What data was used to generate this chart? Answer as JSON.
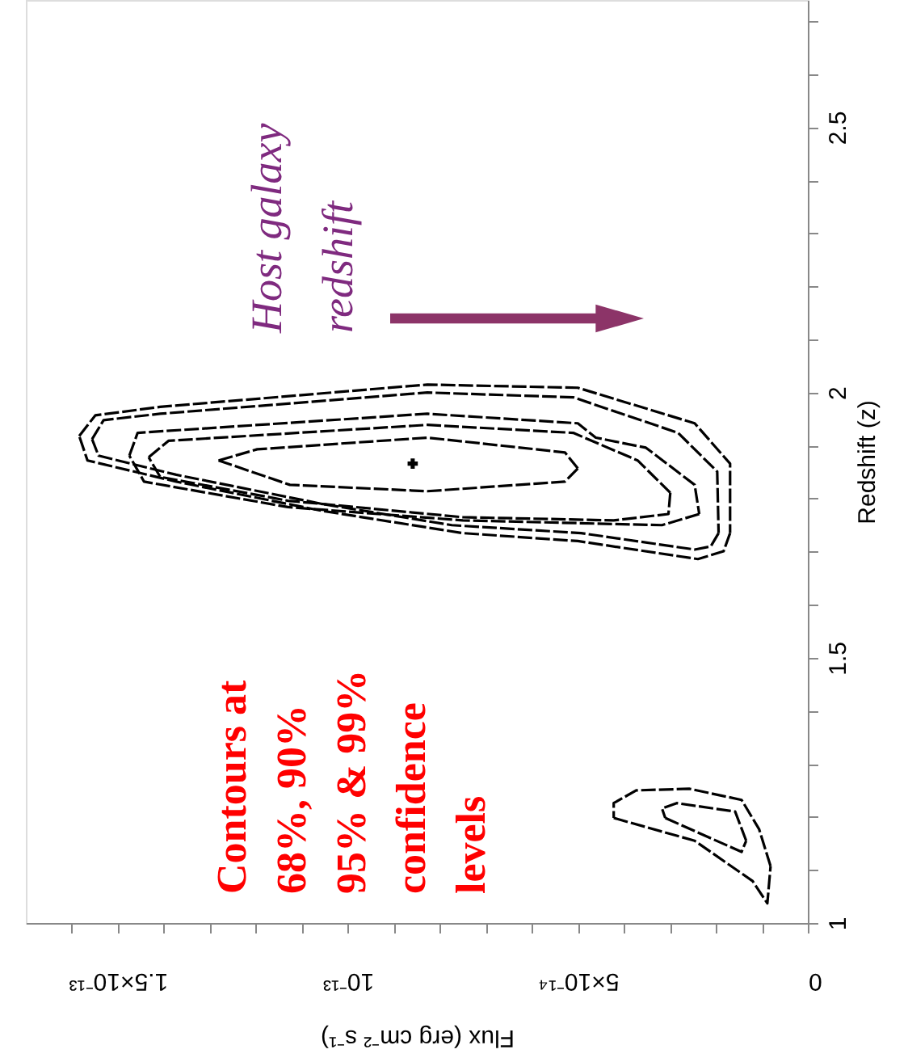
{
  "chart_data": {
    "type": "line",
    "xlabel": "Flux (erg cm⁻² s⁻¹)",
    "ylabel": "Redshift (z)",
    "xlim": [
      1.7e-13,
      0
    ],
    "ylim": [
      1,
      2.74
    ],
    "xticks": [
      0,
      {
        "value": 1e-14,
        "label": null
      },
      {
        "value": 2e-14,
        "label": null
      },
      {
        "value": 3e-14,
        "label": null
      },
      {
        "value": 4e-14,
        "label": null
      },
      {
        "value": 5e-14,
        "label": "5×10⁻¹⁴"
      },
      {
        "value": 6e-14,
        "label": null
      },
      {
        "value": 7e-14,
        "label": null
      },
      {
        "value": 8e-14,
        "label": null
      },
      {
        "value": 9e-14,
        "label": null
      },
      {
        "value": 1e-13,
        "label": "10⁻¹³"
      },
      {
        "value": 1.1e-13,
        "label": null
      },
      {
        "value": 1.2e-13,
        "label": null
      },
      {
        "value": 1.3e-13,
        "label": null
      },
      {
        "value": 1.4e-13,
        "label": null
      },
      {
        "value": 1.5e-13,
        "label": "1.5×10⁻¹³"
      },
      {
        "value": 1.6e-13,
        "label": null
      }
    ],
    "yticks": [
      1,
      {
        "value": 1.1,
        "label": null
      },
      {
        "value": 1.2,
        "label": null
      },
      {
        "value": 1.3,
        "label": null
      },
      {
        "value": 1.4,
        "label": null
      },
      1.5,
      {
        "value": 1.6,
        "label": null
      },
      {
        "value": 1.7,
        "label": null
      },
      {
        "value": 1.8,
        "label": null
      },
      {
        "value": 1.9,
        "label": null
      },
      2,
      {
        "value": 2.1,
        "label": null
      },
      {
        "value": 2.2,
        "label": null
      },
      {
        "value": 2.3,
        "label": null
      },
      {
        "value": 2.4,
        "label": null
      },
      2.5,
      {
        "value": 2.6,
        "label": null
      },
      {
        "value": 2.7,
        "label": null
      }
    ],
    "grid": false,
    "line_style": "dashed",
    "series": [
      {
        "color": "#000000",
        "x": [
          1.584e-13,
          1.549e-13,
          1.408e-13,
          8.27e-14,
          5e-14,
          2.46e-14,
          1.69e-14,
          1.69e-14,
          null,
          1.69e-14,
          1.83e-14,
          2.39e-14,
          5e-14,
          7.5e-14,
          1.056e-13,
          1.373e-13,
          1.566e-13,
          1.584e-13
        ],
        "values": [
          1.918,
          1.957,
          1.973,
          2.015,
          2.009,
          1.942,
          1.866,
          1.735,
          null,
          1.735,
          1.701,
          1.686,
          1.72,
          1.735,
          1.777,
          1.832,
          1.872,
          1.918
        ]
      },
      {
        "color": "#000000",
        "x": [
          1.556e-13,
          1.531e-13,
          1.408e-13,
          8.27e-14,
          5.1e-14,
          2.82e-14,
          1.97e-14,
          1.94e-14,
          null,
          1.94e-14,
          2.11e-14,
          2.46e-14,
          4.93e-14,
          7.74e-14,
          1.056e-13,
          1.373e-13,
          1.542e-13,
          1.556e-13
        ],
        "values": [
          1.912,
          1.948,
          1.96,
          2.0,
          1.991,
          1.924,
          1.851,
          1.735,
          null,
          1.735,
          1.71,
          1.704,
          1.735,
          1.75,
          1.79,
          1.845,
          1.881,
          1.912
        ]
      },
      {
        "color": "#000000",
        "x": [
          1.475e-13,
          1.457e-13,
          8.27e-14,
          5e-14,
          4.61e-14,
          3.52e-14,
          2.46e-14,
          2.36e-14,
          null,
          2.36e-14,
          3.17e-14,
          7.5e-14,
          1.13e-13,
          1.443e-13,
          1.475e-13
        ],
        "values": [
          1.881,
          1.924,
          1.96,
          1.942,
          1.915,
          1.896,
          1.826,
          1.771,
          null,
          1.771,
          1.75,
          1.759,
          1.784,
          1.832,
          1.881
        ]
      },
      {
        "color": "#000000",
        "x": [
          1.433e-13,
          1.39e-13,
          8.27e-14,
          5.1e-14,
          3.7e-14,
          2.99e-14,
          null,
          2.99e-14,
          3.03e-14,
          4.22e-14,
          7.5e-14,
          1.13e-13,
          1.408e-13,
          1.433e-13
        ],
        "values": [
          1.878,
          1.909,
          1.939,
          1.924,
          1.872,
          1.811,
          null,
          1.811,
          1.771,
          1.759,
          1.765,
          1.796,
          1.841,
          1.878
        ]
      },
      {
        "color": "#000000",
        "x": [
          1.281e-13,
          1.197e-13,
          8.27e-14,
          5.28e-14,
          5e-14,
          null,
          5e-14,
          5.28e-14,
          8.27e-14,
          1.126e-13,
          1.281e-13
        ],
        "values": [
          1.872,
          1.893,
          1.915,
          1.887,
          1.857,
          null,
          1.857,
          1.832,
          1.814,
          1.826,
          1.872
        ]
      },
      {
        "color": "#000000",
        "x": [
          8.1e-15,
          1.06e-14,
          1.44e-14,
          2.57e-14,
          3.73e-14,
          4.22e-14,
          4.22e-14,
          null,
          4.22e-14,
          2.46e-14,
          1.2e-14,
          8.8e-15,
          8.1e-15
        ],
        "values": [
          1.107,
          1.177,
          1.232,
          1.253,
          1.25,
          1.226,
          1.198,
          null,
          1.198,
          1.155,
          1.079,
          1.037,
          1.107
        ]
      },
      {
        "color": "#000000",
        "x": [
          1.34e-14,
          1.58e-14,
          2.85e-14,
          3.17e-14,
          3.1e-14,
          null,
          3.1e-14,
          1.44e-14,
          1.34e-14
        ],
        "values": [
          1.155,
          1.21,
          1.226,
          1.216,
          1.198,
          null,
          1.198,
          1.134,
          1.155
        ]
      },
      {
        "type": "scatter",
        "marker": "cross",
        "color": "#000000",
        "x": [
          8.59e-14
        ],
        "values": [
          1.866
        ]
      }
    ],
    "annotations": [
      "Host galaxy\nredshift",
      "Contours at\n68%, 90%\n95% & 99%\nconfidence\nlevels"
    ]
  }
}
